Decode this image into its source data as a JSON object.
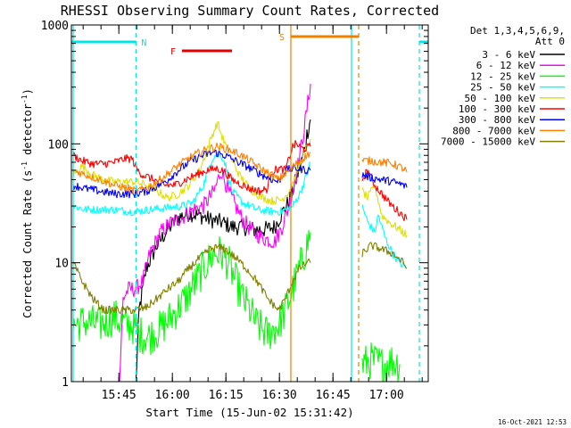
{
  "chart_data": {
    "type": "line",
    "title": "RHESSI Observing Summary Count Rates, Corrected",
    "xlabel": "Start Time (15-Jun-02 15:31:42)",
    "ylabel": "Corrected Count Rate (s⁻¹ detector⁻¹)",
    "ylabel_parts": [
      "Corrected Count Rate (s",
      "-1",
      " detector",
      "-1",
      ")"
    ],
    "footer": "16-Oct-2021 12:53",
    "x_unit": "minutes since 15:31:42",
    "xlim": [
      0,
      100
    ],
    "ylim": [
      1,
      1000
    ],
    "y_scale": "log",
    "x_ticks": [
      {
        "t": 13.3,
        "label": "15:45"
      },
      {
        "t": 28.3,
        "label": "16:00"
      },
      {
        "t": 43.3,
        "label": "16:15"
      },
      {
        "t": 58.3,
        "label": "16:30"
      },
      {
        "t": 73.3,
        "label": "16:45"
      },
      {
        "t": 88.3,
        "label": "17:00"
      }
    ],
    "y_ticks": [
      {
        "v": 1,
        "label": "1"
      },
      {
        "v": 10,
        "label": "10"
      },
      {
        "v": 100,
        "label": "100"
      },
      {
        "v": 1000,
        "label": "1000"
      }
    ],
    "legend_header": [
      "Det 1,3,4,5,6,9,",
      "Att 0"
    ],
    "legend_position": "right",
    "annotations": [
      {
        "label": "N",
        "color": "#00e5e5",
        "t_start": 0,
        "t_end": 18.1,
        "t_line2": 97.5,
        "t_end2": 100
      },
      {
        "label": "F",
        "color": "#e00000",
        "t_start": 31,
        "t_end": 45
      },
      {
        "label": "S",
        "color": "#ee8000",
        "t_start": 61.5,
        "t_end": 80.5
      }
    ],
    "vlines": [
      {
        "t": 0.5,
        "color": "#00e5e5",
        "style": "solid"
      },
      {
        "t": 18.1,
        "color": "#00e5e5",
        "style": "dashed"
      },
      {
        "t": 61.5,
        "color": "#ee8000",
        "style": "solid"
      },
      {
        "t": 78.5,
        "color": "#00e5e5",
        "style": "solid"
      },
      {
        "t": 80.5,
        "color": "#ee8000",
        "style": "dashed"
      },
      {
        "t": 97.5,
        "color": "#00e5e5",
        "style": "dashed"
      }
    ],
    "series": [
      {
        "name": "3 - 6 keV",
        "color": "#000000",
        "points": [
          [
            18.1,
            1
          ],
          [
            19,
            4
          ],
          [
            21,
            9
          ],
          [
            24,
            14
          ],
          [
            27,
            19
          ],
          [
            30,
            24
          ],
          [
            33,
            26
          ],
          [
            36,
            25
          ],
          [
            39,
            23
          ],
          [
            42,
            22
          ],
          [
            45,
            20
          ],
          [
            48,
            20
          ],
          [
            51,
            19
          ],
          [
            54,
            19
          ],
          [
            57,
            20
          ],
          [
            59,
            26
          ],
          [
            61,
            33
          ],
          [
            63,
            50
          ],
          [
            65,
            80
          ],
          [
            66,
            120
          ],
          [
            67,
            160
          ]
        ]
      },
      {
        "name": "6 - 12 keV",
        "color": "#ff00ff",
        "points": [
          [
            13.5,
            1
          ],
          [
            14.5,
            5
          ],
          [
            16,
            6
          ],
          [
            18,
            6
          ],
          [
            20,
            7
          ],
          [
            22,
            12
          ],
          [
            25,
            18
          ],
          [
            28,
            22
          ],
          [
            31,
            24
          ],
          [
            34,
            28
          ],
          [
            37,
            30
          ],
          [
            40,
            40
          ],
          [
            42,
            60
          ],
          [
            44,
            40
          ],
          [
            46,
            30
          ],
          [
            48,
            23
          ],
          [
            51,
            18
          ],
          [
            54,
            16
          ],
          [
            57,
            15
          ],
          [
            59,
            20
          ],
          [
            61,
            30
          ],
          [
            63,
            55
          ],
          [
            65,
            120
          ],
          [
            66.5,
            250
          ],
          [
            67,
            320
          ]
        ]
      },
      {
        "name": "12 - 25 keV",
        "color": "#00ff00",
        "points": [
          [
            0.5,
            3
          ],
          [
            4,
            3.2
          ],
          [
            8,
            3
          ],
          [
            12,
            3.5
          ],
          [
            15,
            3
          ],
          [
            17,
            3
          ],
          [
            19,
            2.5
          ],
          [
            22,
            2.4
          ],
          [
            25,
            2.8
          ],
          [
            28,
            3.5
          ],
          [
            32,
            5
          ],
          [
            35,
            7
          ],
          [
            38,
            10
          ],
          [
            40,
            12
          ],
          [
            42,
            12
          ],
          [
            44,
            10
          ],
          [
            46,
            7
          ],
          [
            48,
            5
          ],
          [
            50,
            4
          ],
          [
            52,
            3
          ],
          [
            55,
            2.5
          ],
          [
            58,
            3
          ],
          [
            60,
            4
          ],
          [
            62,
            6
          ],
          [
            64,
            9
          ],
          [
            66,
            14
          ],
          [
            67,
            18
          ],
          "gap",
          [
            81.5,
            1.4
          ],
          [
            84,
            1.5
          ],
          [
            87,
            1.4
          ],
          [
            90,
            1.5
          ],
          [
            92,
            1.4
          ]
        ]
      },
      {
        "name": "25 - 50 keV",
        "color": "#00ffff",
        "points": [
          [
            0.5,
            30
          ],
          [
            4,
            28
          ],
          [
            8,
            28
          ],
          [
            12,
            28
          ],
          [
            16,
            27
          ],
          [
            18,
            27
          ],
          [
            22,
            28
          ],
          [
            27,
            29
          ],
          [
            31,
            30
          ],
          [
            34,
            32
          ],
          [
            37,
            45
          ],
          [
            39,
            70
          ],
          [
            40,
            80
          ],
          [
            42,
            80
          ],
          [
            43,
            70
          ],
          [
            45,
            40
          ],
          [
            48,
            32
          ],
          [
            52,
            28
          ],
          [
            56,
            27
          ],
          [
            59,
            27
          ],
          [
            62,
            30
          ],
          [
            64,
            38
          ],
          [
            66,
            55
          ],
          [
            67,
            70
          ],
          "gap",
          [
            81.5,
            30
          ],
          [
            83,
            22
          ],
          [
            85,
            18
          ],
          [
            86,
            25
          ],
          [
            88,
            16
          ],
          [
            90,
            12
          ],
          [
            92,
            10
          ],
          [
            94,
            9
          ]
        ]
      },
      {
        "name": "50 - 100 keV",
        "color": "#e0e000",
        "points": [
          [
            0.5,
            55
          ],
          [
            3,
            65
          ],
          [
            6,
            55
          ],
          [
            9,
            50
          ],
          [
            12,
            48
          ],
          [
            15,
            48
          ],
          [
            18,
            48
          ],
          [
            21,
            45
          ],
          [
            24,
            40
          ],
          [
            27,
            35
          ],
          [
            30,
            38
          ],
          [
            33,
            45
          ],
          [
            36,
            60
          ],
          [
            38,
            90
          ],
          [
            40,
            130
          ],
          [
            41,
            150
          ],
          [
            42,
            120
          ],
          [
            44,
            85
          ],
          [
            47,
            55
          ],
          [
            50,
            42
          ],
          [
            53,
            36
          ],
          [
            56,
            33
          ],
          [
            59,
            34
          ],
          [
            61,
            40
          ],
          [
            63,
            55
          ],
          [
            65,
            80
          ],
          [
            67,
            110
          ],
          "gap",
          [
            81.5,
            40
          ],
          [
            83,
            35
          ],
          [
            85,
            45
          ],
          [
            87,
            25
          ],
          [
            89,
            22
          ],
          [
            91,
            20
          ],
          [
            93,
            18
          ],
          [
            94,
            17
          ]
        ]
      },
      {
        "name": "100 - 300 keV",
        "color": "#ff0000",
        "points": [
          [
            0.5,
            80
          ],
          [
            3,
            72
          ],
          [
            6,
            68
          ],
          [
            9,
            68
          ],
          [
            12,
            70
          ],
          [
            15,
            75
          ],
          [
            17,
            75
          ],
          [
            18.5,
            60
          ],
          [
            20,
            55
          ],
          [
            23,
            50
          ],
          [
            26,
            45
          ],
          [
            29,
            45
          ],
          [
            32,
            50
          ],
          [
            35,
            55
          ],
          [
            38,
            60
          ],
          [
            41,
            62
          ],
          [
            43,
            58
          ],
          [
            45,
            50
          ],
          [
            48,
            45
          ],
          [
            50,
            42
          ],
          [
            53,
            40
          ],
          [
            55,
            42
          ],
          [
            56,
            58
          ],
          [
            58,
            62
          ],
          [
            60,
            60
          ],
          [
            62,
            95
          ],
          [
            63,
            100
          ],
          [
            65,
            90
          ],
          [
            67,
            95
          ],
          "gap",
          [
            81.5,
            50
          ],
          [
            83,
            60
          ],
          [
            85,
            45
          ],
          [
            87,
            38
          ],
          [
            89,
            32
          ],
          [
            91,
            28
          ],
          [
            93,
            25
          ],
          [
            94,
            23
          ]
        ]
      },
      {
        "name": "300 - 800 keV",
        "color": "#0000ff",
        "points": [
          [
            0.5,
            45
          ],
          [
            4,
            42
          ],
          [
            8,
            40
          ],
          [
            12,
            38
          ],
          [
            16,
            38
          ],
          [
            18,
            38
          ],
          [
            21,
            40
          ],
          [
            24,
            44
          ],
          [
            27,
            50
          ],
          [
            30,
            60
          ],
          [
            33,
            70
          ],
          [
            36,
            78
          ],
          [
            38,
            82
          ],
          [
            40,
            85
          ],
          [
            43,
            80
          ],
          [
            46,
            72
          ],
          [
            49,
            65
          ],
          [
            52,
            58
          ],
          [
            55,
            52
          ],
          [
            58,
            48
          ],
          [
            60,
            60
          ],
          [
            62,
            62
          ],
          [
            64,
            62
          ],
          [
            66,
            60
          ],
          [
            67,
            60
          ],
          "gap",
          [
            81.5,
            55
          ],
          [
            84,
            52
          ],
          [
            87,
            50
          ],
          [
            90,
            48
          ],
          [
            93,
            45
          ],
          [
            94,
            43
          ]
        ]
      },
      {
        "name": "800 - 7000 keV",
        "color": "#ff8000",
        "points": [
          [
            0.5,
            60
          ],
          [
            4,
            55
          ],
          [
            8,
            50
          ],
          [
            12,
            45
          ],
          [
            16,
            42
          ],
          [
            18,
            40
          ],
          [
            21,
            42
          ],
          [
            24,
            48
          ],
          [
            27,
            56
          ],
          [
            30,
            66
          ],
          [
            33,
            76
          ],
          [
            36,
            85
          ],
          [
            39,
            92
          ],
          [
            41,
            95
          ],
          [
            44,
            90
          ],
          [
            47,
            82
          ],
          [
            50,
            72
          ],
          [
            53,
            62
          ],
          [
            56,
            55
          ],
          [
            58,
            50
          ],
          [
            61,
            60
          ],
          [
            64,
            72
          ],
          [
            66,
            80
          ],
          [
            67,
            85
          ],
          "gap",
          [
            81.5,
            72
          ],
          [
            84,
            72
          ],
          [
            87,
            70
          ],
          [
            90,
            68
          ],
          [
            93,
            62
          ],
          [
            94,
            58
          ]
        ]
      },
      {
        "name": "7000 - 15000 keV",
        "color": "#808000",
        "points": [
          [
            0.5,
            10
          ],
          [
            3,
            7
          ],
          [
            6,
            5
          ],
          [
            9,
            4
          ],
          [
            12,
            4
          ],
          [
            15,
            4
          ],
          [
            18,
            4
          ],
          [
            21,
            4.2
          ],
          [
            24,
            5
          ],
          [
            27,
            6
          ],
          [
            30,
            7
          ],
          [
            33,
            9
          ],
          [
            36,
            11
          ],
          [
            39,
            13
          ],
          [
            41,
            13.5
          ],
          [
            43,
            13
          ],
          [
            46,
            11
          ],
          [
            49,
            9
          ],
          [
            52,
            7
          ],
          [
            55,
            5
          ],
          [
            58,
            4
          ],
          [
            60,
            5
          ],
          [
            62,
            7
          ],
          [
            64,
            9
          ],
          [
            66,
            10
          ],
          [
            67,
            10
          ],
          "gap",
          [
            81.5,
            12
          ],
          [
            84,
            14
          ],
          [
            87,
            13
          ],
          [
            90,
            12
          ],
          [
            93,
            10
          ],
          [
            94,
            9
          ]
        ]
      }
    ]
  }
}
